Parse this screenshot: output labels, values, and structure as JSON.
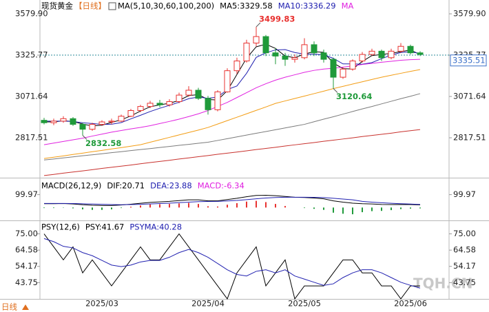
{
  "chart_data": [
    {
      "type": "candlestick",
      "title": "现货黄金",
      "period": "【日线】",
      "header": [
        {
          "text": "MA(5,10,30,60,100,200)",
          "color": "#000000"
        },
        {
          "text": "MA5:3329.58",
          "color": "#000000"
        },
        {
          "text": "MA10:3336.29",
          "color": "#2020b0"
        },
        {
          "text": "MA",
          "color": "#e020e0"
        }
      ],
      "categories": [
        null,
        null,
        null,
        null,
        null,
        null,
        "2025/03",
        null,
        null,
        null,
        null,
        null,
        null,
        null,
        null,
        null,
        null,
        "2025/04",
        null,
        null,
        null,
        null,
        null,
        null,
        null,
        null,
        null,
        "2025/05",
        null,
        null,
        null,
        null,
        null,
        null,
        null,
        null,
        null,
        null,
        "2025/06",
        null
      ],
      "open": [
        2925,
        2910,
        2920,
        2935,
        2900,
        2870,
        2900,
        2915,
        2920,
        2950,
        2985,
        3010,
        3030,
        3020,
        3040,
        3080,
        3110,
        3060,
        2990,
        3100,
        3230,
        3290,
        3400,
        3440,
        3340,
        3320,
        3300,
        3310,
        3390,
        3340,
        3300,
        3190,
        3240,
        3290,
        3330,
        3350,
        3310,
        3350,
        3380,
        3340
      ],
      "high": [
        2940,
        2935,
        2950,
        2945,
        2910,
        2910,
        2925,
        2935,
        2960,
        2995,
        3020,
        3045,
        3050,
        3055,
        3095,
        3135,
        3125,
        3075,
        3110,
        3245,
        3310,
        3420,
        3499.83,
        3450,
        3370,
        3340,
        3330,
        3430,
        3410,
        3360,
        3310,
        3250,
        3300,
        3345,
        3365,
        3360,
        3365,
        3400,
        3390,
        3350
      ],
      "low": [
        2900,
        2895,
        2910,
        2890,
        2832.58,
        2860,
        2890,
        2900,
        2915,
        2945,
        2975,
        3000,
        3005,
        3010,
        3030,
        3070,
        3050,
        2960,
        2980,
        3095,
        3210,
        3280,
        3380,
        3320,
        3270,
        3260,
        3280,
        3300,
        3320,
        3280,
        3120.64,
        3180,
        3230,
        3280,
        3320,
        3290,
        3300,
        3340,
        3330,
        3320
      ],
      "close": [
        2910,
        2920,
        2935,
        2900,
        2870,
        2900,
        2915,
        2920,
        2950,
        2985,
        3010,
        3030,
        3020,
        3040,
        3080,
        3110,
        3060,
        2990,
        3100,
        3230,
        3290,
        3400,
        3440,
        3340,
        3320,
        3300,
        3310,
        3390,
        3340,
        3300,
        3190,
        3240,
        3290,
        3330,
        3350,
        3310,
        3350,
        3380,
        3340,
        3330
      ],
      "up_color": "#e8312f",
      "down_color": "#1f9a3a",
      "series": [
        {
          "color": "#000000",
          "values": [
            2915,
            2915,
            2922,
            2918,
            2902,
            2890,
            2895,
            2912,
            2928,
            2952,
            2982,
            3008,
            3020,
            3030,
            3047,
            3077,
            3083,
            3053,
            3050,
            3107,
            3207,
            3307,
            3377,
            3393,
            3367,
            3320,
            3310,
            3333,
            3347,
            3343,
            3277,
            3243,
            3240,
            3287,
            3323,
            3330,
            3337,
            3347,
            3357,
            3329.58
          ]
        },
        {
          "color": "#2020b0",
          "values": [
            2920,
            2920,
            2920,
            2918,
            2910,
            2905,
            2900,
            2901,
            2911,
            2934,
            2956,
            2979,
            2999,
            3017,
            3036,
            3058,
            3068,
            3060,
            3068,
            3114,
            3136,
            3214,
            3312,
            3340,
            3358,
            3360,
            3342,
            3332,
            3332,
            3328,
            3306,
            3272,
            3272,
            3270,
            3280,
            3304,
            3326,
            3342,
            3346,
            3336.29
          ]
        },
        {
          "color": "#e020e0",
          "values": [
            2775,
            2785,
            2795,
            2805,
            2815,
            2828,
            2840,
            2852,
            2862,
            2872,
            2881,
            2892,
            2905,
            2918,
            2932,
            2948,
            2965,
            2985,
            3010,
            3035,
            3065,
            3095,
            3125,
            3150,
            3172,
            3190,
            3205,
            3220,
            3232,
            3240,
            3245,
            3252,
            3260,
            3268,
            3275,
            3282,
            3288,
            3294,
            3298,
            3300
          ]
        },
        {
          "color": "#f39c12",
          "values": [
            2690,
            2698,
            2706,
            2715,
            2723,
            2732,
            2740,
            2749,
            2757,
            2766,
            2775,
            2790,
            2805,
            2820,
            2835,
            2850,
            2865,
            2881,
            2902,
            2923,
            2944,
            2965,
            2986,
            3007,
            3029,
            3044,
            3059,
            3074,
            3089,
            3104,
            3120,
            3134,
            3148,
            3162,
            3176,
            3190,
            3202,
            3214,
            3226,
            3237
          ]
        },
        {
          "color": "#7a7a7a",
          "values": [
            2681,
            2687,
            2694,
            2700,
            2707,
            2713,
            2719,
            2726,
            2732,
            2739,
            2745,
            2751,
            2758,
            2764,
            2771,
            2777,
            2784,
            2790,
            2801,
            2812,
            2823,
            2834,
            2845,
            2856,
            2867,
            2878,
            2889,
            2900,
            2916,
            2932,
            2947,
            2963,
            2979,
            2995,
            3010,
            3026,
            3042,
            3058,
            3073,
            3089
          ]
        },
        {
          "color": "#c8302c",
          "values": [
            2585,
            2592,
            2600,
            2607,
            2614,
            2621,
            2629,
            2636,
            2643,
            2650,
            2658,
            2665,
            2672,
            2679,
            2687,
            2694,
            2701,
            2708,
            2716,
            2723,
            2730,
            2737,
            2745,
            2752,
            2759,
            2767,
            2774,
            2781,
            2788,
            2796,
            2803,
            2810,
            2817,
            2825,
            2832,
            2839,
            2846,
            2854,
            2861,
            2868
          ]
        }
      ],
      "ylim": [
        2572,
        3631
      ],
      "yticks": [
        {
          "value": 3579.9,
          "label": "3579.90"
        },
        {
          "value": 3325.77,
          "label": "3325.77"
        },
        {
          "value": 3071.64,
          "label": "3071.64"
        },
        {
          "value": 2817.51,
          "label": "2817.51"
        }
      ],
      "reference_line": 3325.77,
      "price_tag": 3335.51,
      "annotations": [
        "3499.83",
        "3120.64",
        "2832.58"
      ]
    },
    {
      "type": "macd",
      "header": [
        {
          "text": "MACD(26,12,9)",
          "color": "#000000"
        },
        {
          "text": "DIF:20.71",
          "color": "#000000"
        },
        {
          "text": "DEA:23.88",
          "color": "#2020b0"
        },
        {
          "text": "MACD:-6.34",
          "color": "#e020e0"
        }
      ],
      "series": [
        {
          "color": "#000000",
          "values": [
            30,
            30,
            31,
            28,
            22,
            18,
            16,
            16,
            20,
            26,
            33,
            40,
            44,
            48,
            54,
            60,
            60,
            52,
            52,
            62,
            72,
            84,
            94,
            95,
            92,
            86,
            80,
            78,
            74,
            68,
            52,
            42,
            34,
            30,
            28,
            24,
            23,
            24,
            23,
            20.71
          ]
        },
        {
          "color": "#2020b0",
          "values": [
            32,
            32,
            32,
            31,
            29,
            27,
            25,
            23,
            22,
            23,
            25,
            28,
            31,
            34,
            38,
            42,
            46,
            47,
            48,
            51,
            55,
            61,
            68,
            74,
            78,
            80,
            80,
            80,
            79,
            77,
            72,
            66,
            60,
            48,
            42,
            37,
            33,
            30,
            27,
            23.88
          ]
        }
      ],
      "histogram": {
        "up_color": "#e8312f",
        "down_color": "#1f9a3a",
        "values": [
          -4,
          -4,
          -2,
          -6,
          -14,
          -18,
          -18,
          -14,
          -4,
          6,
          16,
          24,
          26,
          28,
          32,
          36,
          28,
          10,
          8,
          22,
          34,
          46,
          52,
          42,
          28,
          12,
          0,
          -4,
          -10,
          -18,
          -40,
          -48,
          -52,
          -36,
          -28,
          -26,
          -20,
          -12,
          -8,
          -6.34
        ]
      },
      "ylim": [
        -105,
        210
      ],
      "yticks": [
        99.97
      ]
    },
    {
      "type": "line",
      "header": [
        {
          "text": "PSY(12,6)",
          "color": "#000000"
        },
        {
          "text": "PSY:41.67",
          "color": "#000000"
        },
        {
          "text": "PSYMA:40.28",
          "color": "#2020b0"
        }
      ],
      "series": [
        {
          "color": "#000000",
          "values": [
            75,
            66.67,
            58.33,
            66.67,
            50,
            58.33,
            50,
            41.67,
            50,
            58.33,
            66.67,
            58.33,
            58.33,
            66.67,
            75,
            66.67,
            58.33,
            50,
            41.67,
            33.33,
            50,
            58.33,
            66.67,
            41.67,
            50,
            58.33,
            33.33,
            41.67,
            41.67,
            41.67,
            50,
            58.33,
            58.33,
            50,
            50,
            41.67,
            41.67,
            33.33,
            41.67,
            41.67
          ]
        },
        {
          "color": "#2020b0",
          "values": [
            72,
            70,
            67,
            66,
            63,
            61,
            58,
            55,
            54,
            55,
            57,
            58,
            58,
            60,
            63,
            65,
            63,
            60,
            56,
            52,
            49,
            48,
            51,
            52,
            50,
            52,
            48,
            46,
            44,
            42,
            43,
            47,
            50,
            52,
            52,
            50,
            47,
            44,
            42,
            40.28
          ]
        }
      ],
      "ylim": [
        34.2,
        82.3
      ],
      "yticks": [
        {
          "value": 75,
          "label": "75.00"
        },
        64.58,
        54.17,
        43.75
      ]
    }
  ],
  "footer": {
    "period_button": "日线",
    "watermark": "TQH.CN"
  }
}
